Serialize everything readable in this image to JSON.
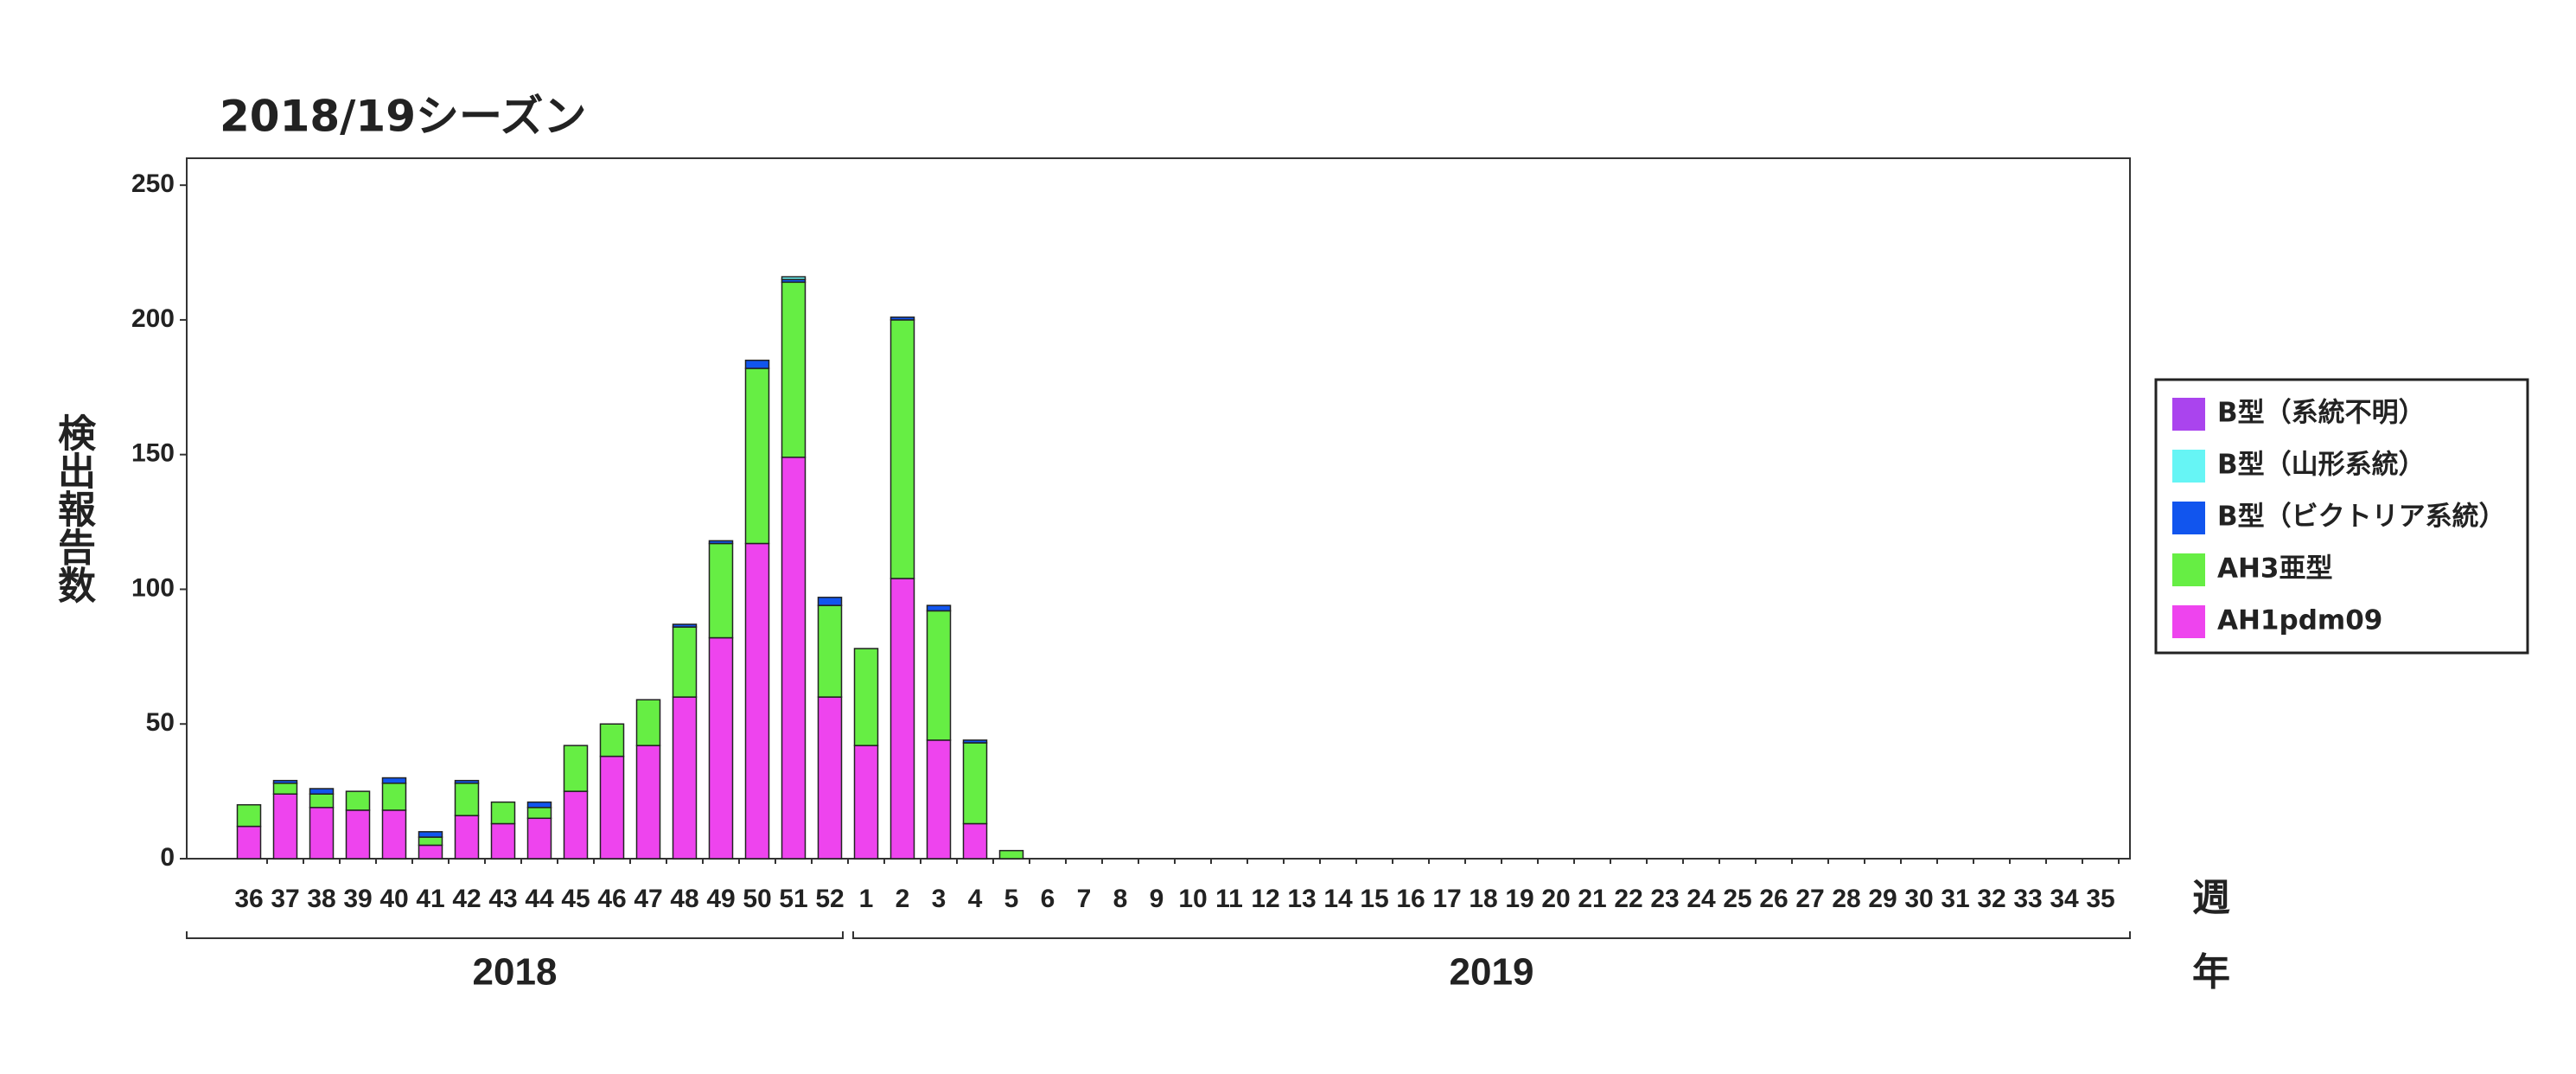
{
  "chart_data": {
    "type": "bar",
    "stacked": true,
    "title": "2018/19シーズン",
    "y_label": "検出報告数",
    "x_label": "週",
    "group_label": "年",
    "groups": [
      "2018",
      "2019"
    ],
    "categories": [
      "36",
      "37",
      "38",
      "39",
      "40",
      "41",
      "42",
      "43",
      "44",
      "45",
      "46",
      "47",
      "48",
      "49",
      "50",
      "51",
      "52",
      "1",
      "2",
      "3",
      "4",
      "5",
      "6",
      "7",
      "8",
      "9",
      "10",
      "11",
      "12",
      "13",
      "14",
      "15",
      "16",
      "17",
      "18",
      "19",
      "20",
      "21",
      "22",
      "23",
      "24",
      "25",
      "26",
      "27",
      "28",
      "29",
      "30",
      "31",
      "32",
      "33",
      "34",
      "35"
    ],
    "series": [
      {
        "name": "AH1pdm09",
        "color": "#ee44ee",
        "values": [
          12,
          24,
          19,
          18,
          18,
          5,
          16,
          13,
          15,
          25,
          38,
          42,
          60,
          82,
          117,
          149,
          60,
          42,
          104,
          44,
          13,
          0,
          0,
          0,
          0,
          0,
          0,
          0,
          0,
          0,
          0,
          0,
          0,
          0,
          0,
          0,
          0,
          0,
          0,
          0,
          0,
          0,
          0,
          0,
          0,
          0,
          0,
          0,
          0,
          0,
          0,
          0
        ]
      },
      {
        "name": "AH3亜型",
        "color": "#66ee44",
        "values": [
          8,
          4,
          5,
          7,
          10,
          3,
          12,
          8,
          4,
          17,
          12,
          17,
          26,
          35,
          65,
          65,
          34,
          36,
          96,
          48,
          30,
          3,
          0,
          0,
          0,
          0,
          0,
          0,
          0,
          0,
          0,
          0,
          0,
          0,
          0,
          0,
          0,
          0,
          0,
          0,
          0,
          0,
          0,
          0,
          0,
          0,
          0,
          0,
          0,
          0,
          0,
          0
        ]
      },
      {
        "name": "B型（ビクトリア系統）",
        "color": "#1155ee",
        "values": [
          0,
          1,
          2,
          0,
          2,
          2,
          1,
          0,
          2,
          0,
          0,
          0,
          1,
          1,
          3,
          1,
          3,
          0,
          1,
          2,
          1,
          0,
          0,
          0,
          0,
          0,
          0,
          0,
          0,
          0,
          0,
          0,
          0,
          0,
          0,
          0,
          0,
          0,
          0,
          0,
          0,
          0,
          0,
          0,
          0,
          0,
          0,
          0,
          0,
          0,
          0,
          0
        ]
      },
      {
        "name": "B型（山形系統）",
        "color": "#66f5f5",
        "values": [
          0,
          0,
          0,
          0,
          0,
          0,
          0,
          0,
          0,
          0,
          0,
          0,
          0,
          0,
          0,
          1,
          0,
          0,
          0,
          0,
          0,
          0,
          0,
          0,
          0,
          0,
          0,
          0,
          0,
          0,
          0,
          0,
          0,
          0,
          0,
          0,
          0,
          0,
          0,
          0,
          0,
          0,
          0,
          0,
          0,
          0,
          0,
          0,
          0,
          0,
          0,
          0
        ]
      },
      {
        "name": "B型（系統不明）",
        "color": "#aa44ee",
        "values": [
          0,
          0,
          0,
          0,
          0,
          0,
          0,
          0,
          0,
          0,
          0,
          0,
          0,
          0,
          0,
          0,
          0,
          0,
          0,
          0,
          0,
          0,
          0,
          0,
          0,
          0,
          0,
          0,
          0,
          0,
          0,
          0,
          0,
          0,
          0,
          0,
          0,
          0,
          0,
          0,
          0,
          0,
          0,
          0,
          0,
          0,
          0,
          0,
          0,
          0,
          0,
          0
        ]
      }
    ],
    "ylim": [
      0,
      260
    ],
    "yticks": [
      0,
      50,
      100,
      150,
      200,
      250
    ],
    "legend": "right"
  }
}
